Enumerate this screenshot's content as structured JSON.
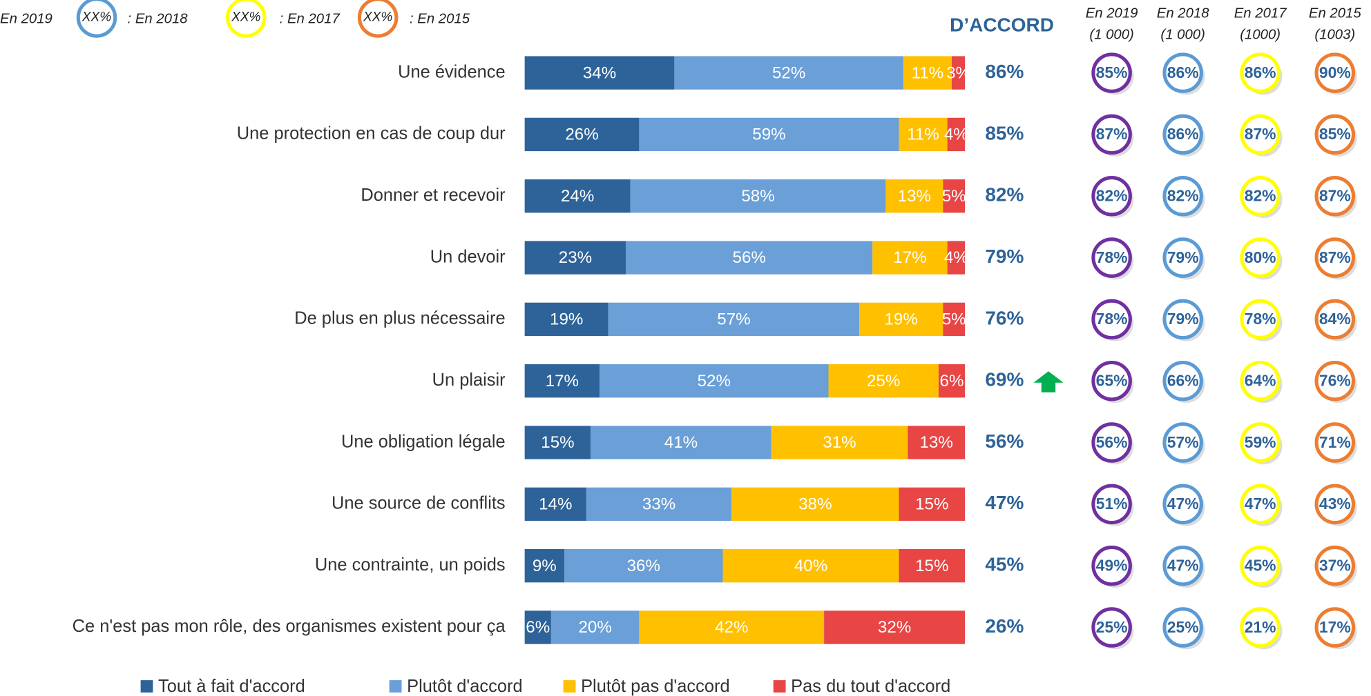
{
  "chart_data": {
    "type": "stacked_barh",
    "legend_key": {
      "sample": "XX%",
      "labels": [
        "En 2019",
        ": En 2018",
        ": En 2017",
        ": En 2015"
      ],
      "colors": [
        "#5b9bd5",
        "#ffff00",
        "#ed7d31"
      ]
    },
    "total_title": "D’ACCORD",
    "categories": [
      "Une évidence",
      "Une protection en cas de coup dur",
      "Donner et recevoir",
      "Un devoir",
      "De plus en plus nécessaire",
      "Un plaisir",
      "Une obligation légale",
      "Une source de conflits",
      "Une contrainte, un poids",
      "Ce n'est pas mon rôle, des organismes existent pour ça"
    ],
    "xlim": [
      0,
      100
    ],
    "series": [
      {
        "name": "Tout à fait d'accord",
        "color": "#2e6399",
        "values": [
          34,
          26,
          24,
          23,
          19,
          17,
          15,
          14,
          9,
          6
        ],
        "value_labels": [
          "34%",
          "26%",
          "24%",
          "23%",
          "19%",
          "17%",
          "15%",
          "14%",
          "9%",
          "6%"
        ]
      },
      {
        "name": "Plutôt d'accord",
        "color": "#6a9fd8",
        "values": [
          52,
          59,
          58,
          56,
          57,
          52,
          41,
          33,
          36,
          20
        ],
        "value_labels": [
          "52%",
          "59%",
          "58%",
          "56%",
          "57%",
          "52%",
          "41%",
          "33%",
          "36%",
          "20%"
        ]
      },
      {
        "name": "Plutôt pas d'accord",
        "color": "#ffc000",
        "values": [
          11,
          11,
          13,
          17,
          19,
          25,
          31,
          38,
          40,
          42
        ],
        "value_labels": [
          "11%",
          "11%",
          "13%",
          "17%",
          "19%",
          "25%",
          "31%",
          "38%",
          "40%",
          "42%"
        ]
      },
      {
        "name": "Pas du tout d'accord",
        "color": "#e84545",
        "values": [
          3,
          4,
          5,
          4,
          5,
          6,
          13,
          15,
          15,
          32
        ],
        "value_labels": [
          "3%",
          "4%",
          "5%",
          "4%",
          "5%",
          "6%",
          "13%",
          "15%",
          "15%",
          "32%"
        ]
      }
    ],
    "totals": {
      "values": [
        86,
        85,
        82,
        79,
        76,
        69,
        56,
        47,
        45,
        26
      ],
      "value_labels": [
        "86%",
        "85%",
        "82%",
        "79%",
        "76%",
        "69%",
        "56%",
        "47%",
        "45%",
        "26%"
      ]
    },
    "comparisons": [
      {
        "name": "En 2019",
        "sample": "(1 000)",
        "color": "#7030a0",
        "values": [
          85,
          87,
          82,
          78,
          78,
          65,
          56,
          51,
          49,
          25
        ],
        "value_labels": [
          "85%",
          "87%",
          "82%",
          "78%",
          "78%",
          "65%",
          "56%",
          "51%",
          "49%",
          "25%"
        ]
      },
      {
        "name": "En 2018",
        "sample": "(1 000)",
        "color": "#5b9bd5",
        "values": [
          86,
          86,
          82,
          79,
          79,
          66,
          57,
          47,
          47,
          25
        ],
        "value_labels": [
          "86%",
          "86%",
          "82%",
          "79%",
          "79%",
          "66%",
          "57%",
          "47%",
          "47%",
          "25%"
        ]
      },
      {
        "name": "En 2017",
        "sample": "(1000)",
        "color": "#ffff00",
        "values": [
          86,
          87,
          82,
          80,
          78,
          64,
          59,
          47,
          45,
          21
        ],
        "value_labels": [
          "86%",
          "87%",
          "82%",
          "80%",
          "78%",
          "64%",
          "59%",
          "47%",
          "45%",
          "21%"
        ]
      },
      {
        "name": "En 2015",
        "sample": "(1003)",
        "color": "#ed7d31",
        "values": [
          90,
          85,
          87,
          87,
          84,
          76,
          71,
          43,
          37,
          17
        ],
        "value_labels": [
          "90%",
          "85%",
          "87%",
          "87%",
          "84%",
          "76%",
          "71%",
          "43%",
          "37%",
          "17%"
        ]
      }
    ]
  }
}
